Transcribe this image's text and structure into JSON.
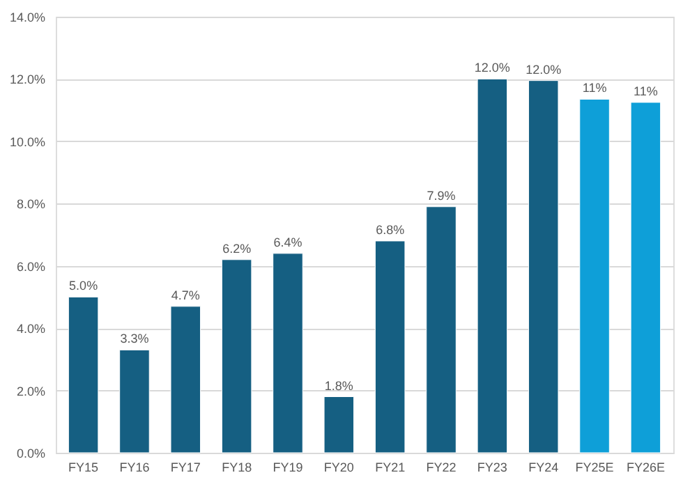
{
  "chart_data": {
    "type": "bar",
    "categories": [
      "FY15",
      "FY16",
      "FY17",
      "FY18",
      "FY19",
      "FY20",
      "FY21",
      "FY22",
      "FY23",
      "FY24",
      "FY25E",
      "FY26E"
    ],
    "values": [
      5.0,
      3.3,
      4.7,
      6.2,
      6.4,
      1.8,
      6.8,
      7.9,
      12.0,
      11.95,
      11.35,
      11.25
    ],
    "value_labels": [
      "5.0%",
      "3.3%",
      "4.7%",
      "6.2%",
      "6.4%",
      "1.8%",
      "6.8%",
      "7.9%",
      "12.0%",
      "12.0%",
      "11%",
      "11%"
    ],
    "colors": [
      "#155f82",
      "#155f82",
      "#155f82",
      "#155f82",
      "#155f82",
      "#155f82",
      "#155f82",
      "#155f82",
      "#155f82",
      "#155f82",
      "#0e9fd8",
      "#0e9fd8"
    ],
    "ylim": [
      0,
      14
    ],
    "yticks": [
      {
        "value": 0,
        "label": "0.0%"
      },
      {
        "value": 2,
        "label": "2.0%"
      },
      {
        "value": 4,
        "label": "4.0%"
      },
      {
        "value": 6,
        "label": "6.0%"
      },
      {
        "value": 8,
        "label": "8.0%"
      },
      {
        "value": 10,
        "label": "10.0%"
      },
      {
        "value": 12,
        "label": "12.0%"
      },
      {
        "value": 14,
        "label": "14.0%"
      }
    ],
    "grid": "y"
  }
}
